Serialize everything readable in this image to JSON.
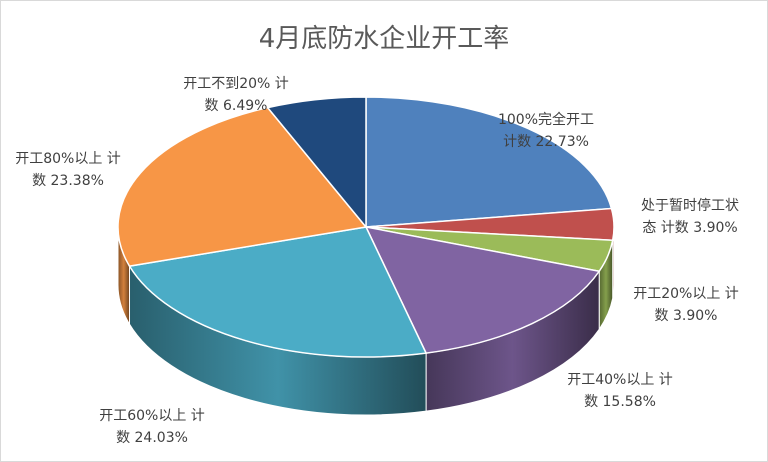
{
  "chart_data": {
    "type": "pie",
    "title": "4月底防水企业开工率",
    "series": [
      {
        "label_line1": "100%完全开工",
        "label_line2": "计数 22.73%",
        "value": 22.73,
        "color": "#4f81bd"
      },
      {
        "label_line1": "处于暂时停工状",
        "label_line2": "态 计数 3.90%",
        "value": 3.9,
        "color": "#c0504d"
      },
      {
        "label_line1": "开工20%以上 计",
        "label_line2": "数 3.90%",
        "value": 3.9,
        "color": "#9bbb59"
      },
      {
        "label_line1": "开工40%以上 计",
        "label_line2": "数 15.58%",
        "value": 15.58,
        "color": "#8064a2"
      },
      {
        "label_line1": "开工60%以上 计",
        "label_line2": "数 24.03%",
        "value": 24.03,
        "color": "#4bacc6"
      },
      {
        "label_line1": "开工80%以上 计",
        "label_line2": "数 23.38%",
        "value": 23.38,
        "color": "#f79646"
      },
      {
        "label_line1": "开工不到20% 计",
        "label_line2": "数 6.49%",
        "value": 6.49,
        "color": "#1f497d"
      }
    ]
  }
}
